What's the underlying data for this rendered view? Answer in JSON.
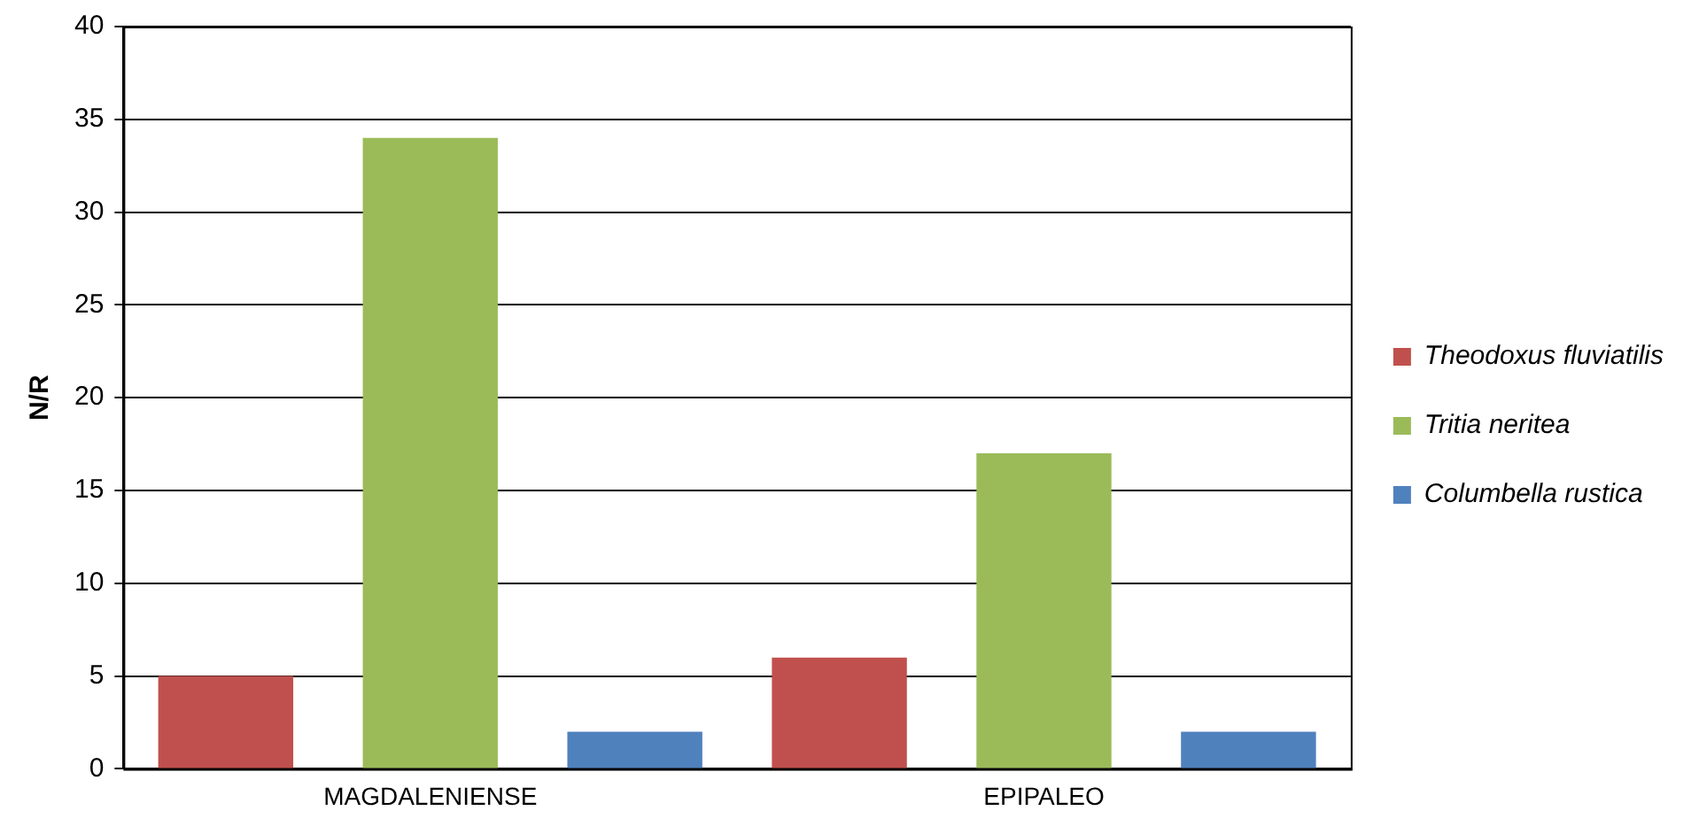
{
  "chart_data": {
    "type": "bar",
    "ylabel": "N/R",
    "categories": [
      "MAGDALENIENSE",
      "EPIPALEO"
    ],
    "series": [
      {
        "name": "Theodoxus fluviatilis",
        "color": "#c0504d",
        "values": [
          5,
          6
        ]
      },
      {
        "name": "Tritia neritea",
        "color": "#9bbb59",
        "values": [
          34,
          17
        ]
      },
      {
        "name": "Columbella rustica",
        "color": "#4f81bd",
        "values": [
          2,
          2
        ]
      }
    ],
    "ylim": [
      0,
      40
    ],
    "yticks": [
      0,
      5,
      10,
      15,
      20,
      25,
      30,
      35,
      40
    ],
    "grid": "y",
    "legend": "right"
  }
}
